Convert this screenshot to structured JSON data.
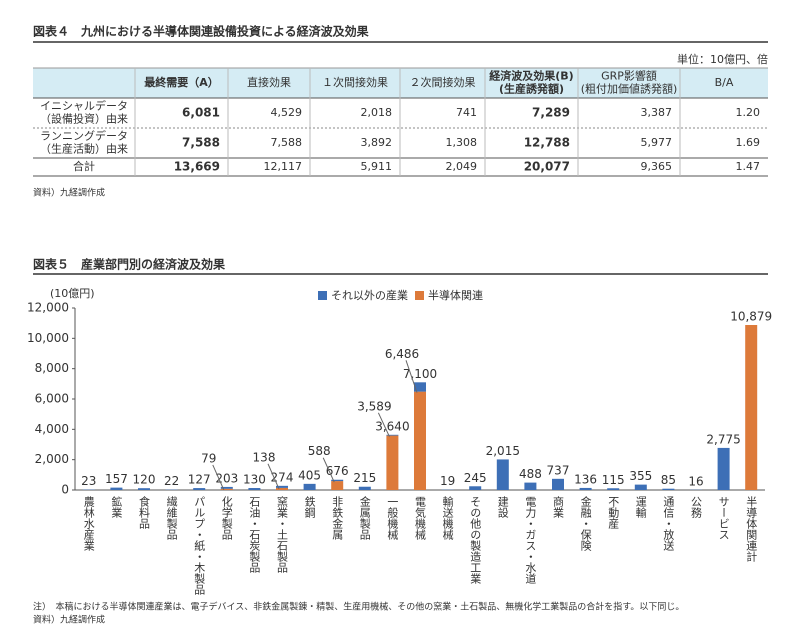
{
  "fig4": {
    "title": "図表４　九州における半導体関連設備投資による経済波及効果",
    "unit": "単位：10億円、倍",
    "table": {
      "header": [
        [],
        [
          "最終需要（A）"
        ],
        [
          "直接効果"
        ],
        [
          "１次間接効果"
        ],
        [
          "２次間接効果"
        ],
        [
          "経済波及効果(B)",
          "(生産誘発額)"
        ],
        [
          "GRP影響額",
          "(粗付加価値誘発額)"
        ],
        [
          "B/A"
        ]
      ],
      "rows": [
        [
          [
            "イニシャルデータ",
            "（設備投資）由来"
          ],
          "6,081",
          "4,529",
          "2,018",
          "741",
          "7,289",
          "3,387",
          "1.20"
        ],
        [
          [
            "ランニングデータ",
            "（生産活動）由来"
          ],
          "7,588",
          "7,588",
          "3,892",
          "1,308",
          "12,788",
          "5,977",
          "1.69"
        ],
        [
          [
            "合計"
          ],
          "13,669",
          "12,117",
          "5,911",
          "2,049",
          "20,077",
          "9,365",
          "1.47"
        ]
      ]
    },
    "source": "資料）九経調作成"
  },
  "chart_data": {
    "type": "stacked_bar",
    "title": "図表５　産業部門別の経済波及効果",
    "y_label": "(10億円)",
    "categories": [
      "農林水産業",
      "鉱業",
      "食料品",
      "繊維製品",
      "パルプ・紙・木製品",
      "化学製品",
      "石油・石炭製品",
      "窯業・土石製品",
      "鉄鋼",
      "非鉄金属",
      "金属製品",
      "一般機械",
      "電気機械",
      "輸送機械",
      "その他の製造工業",
      "建設",
      "電力・ガス・水道",
      "商業",
      "金融・保険",
      "不動産",
      "運輸",
      "通信・放送",
      "公務",
      "サービス",
      "半導体関連計"
    ],
    "series": [
      {
        "name": "それ以外の産業",
        "color": "#3d6fb6",
        "values": [
          23,
          157,
          120,
          22,
          127,
          124,
          130,
          136,
          405,
          88,
          215,
          51,
          614,
          19,
          245,
          2015,
          488,
          737,
          136,
          115,
          355,
          85,
          16,
          2775,
          null
        ]
      },
      {
        "name": "半導体関連",
        "color": "#dd7a3a",
        "values": [
          null,
          null,
          null,
          null,
          null,
          79,
          null,
          138,
          null,
          588,
          null,
          3589,
          6486,
          null,
          null,
          null,
          null,
          null,
          null,
          null,
          null,
          null,
          null,
          null,
          10879
        ],
        "value_labels": [
          null,
          null,
          null,
          null,
          null,
          "79",
          null,
          "138",
          null,
          "588",
          null,
          "3,589",
          "6,486",
          null,
          null,
          null,
          null,
          null,
          null,
          null,
          null,
          null,
          null,
          null,
          null
        ]
      }
    ],
    "total_labels": [
      "23",
      "157",
      "120",
      "22",
      "127",
      "203",
      "130",
      "274",
      "405",
      "676",
      "215",
      "3,640",
      "7,100",
      "19",
      "245",
      "2,015",
      "488",
      "737",
      "136",
      "115",
      "355",
      "85",
      "16",
      "2,775",
      "10,879"
    ],
    "ylim": [
      0,
      12000
    ],
    "yticks": [
      0,
      {
        "value": 2000,
        "label": "2,000"
      },
      {
        "value": 4000,
        "label": "4,000"
      },
      {
        "value": 6000,
        "label": "6,000"
      },
      {
        "value": 8000,
        "label": "8,000"
      },
      {
        "value": 10000,
        "label": "10,000"
      },
      {
        "value": 12000,
        "label": "12,000"
      }
    ],
    "note": "注）　本稿における半導体関連産業は、電子デバイス、非鉄金属製錬・精製、生産用機械、その他の窯業・土石製品、無機化学工業製品の合計を指す。以下同じ。",
    "source": "資料）九経調作成"
  }
}
